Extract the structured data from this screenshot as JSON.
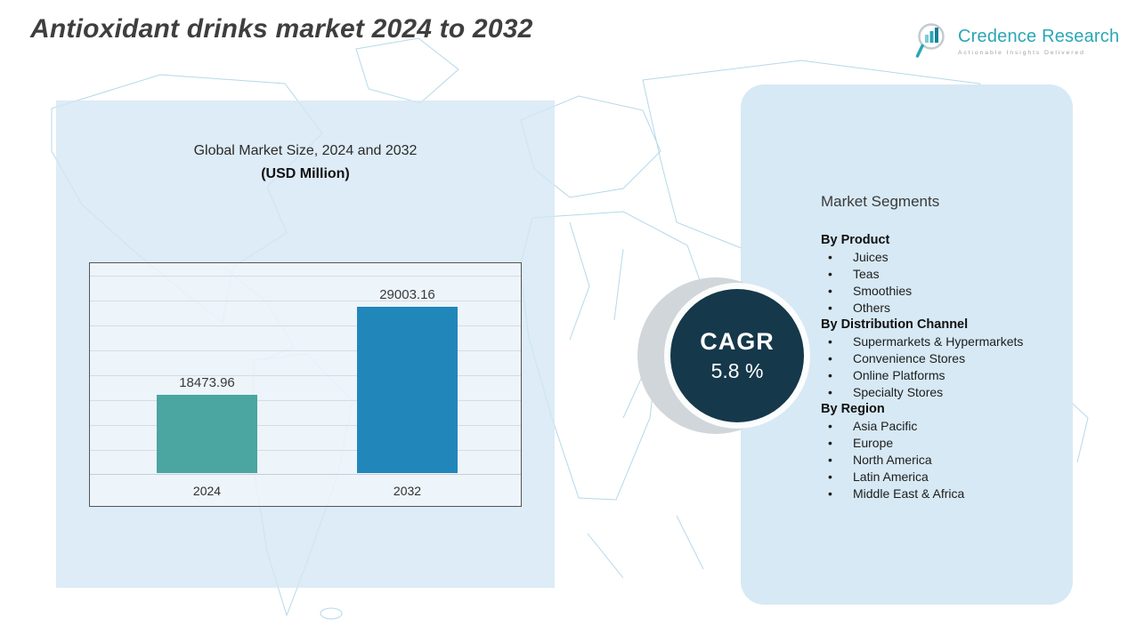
{
  "page": {
    "title": "Antioxidant drinks market 2024 to 2032"
  },
  "logo": {
    "name": "Credence Research",
    "tagline": "Actionable Insights Delivered"
  },
  "chart_panel": {
    "title_line1": "Global Market Size, 2024 and 2032",
    "title_line2": "(USD Million)"
  },
  "chart_data": {
    "type": "bar",
    "title": "Global Market Size, 2024 and 2032",
    "subtitle": "(USD Million)",
    "categories": [
      "2024",
      "2032"
    ],
    "values": [
      18473.96,
      29003.16
    ],
    "value_labels": [
      "18473.96",
      "29003.16"
    ],
    "bar_colors": [
      "#4BA5A1",
      "#2187BB"
    ],
    "xlabel": "",
    "ylabel": "",
    "grid": true,
    "legend": false
  },
  "cagr": {
    "label": "CAGR",
    "value": "5.8  %"
  },
  "segments": {
    "heading": "Market Segments",
    "groups": [
      {
        "title": "By Product",
        "items": [
          "Juices",
          "Teas",
          "Smoothies",
          "Others"
        ]
      },
      {
        "title": "By Distribution Channel",
        "items": [
          "Supermarkets & Hypermarkets",
          "Convenience Stores",
          "Online Platforms",
          "Specialty Stores"
        ]
      },
      {
        "title": "By Region",
        "items": [
          "Asia Pacific",
          "Europe",
          "North America",
          "Latin America",
          "Middle East & Africa"
        ]
      }
    ]
  },
  "colors": {
    "panel_blue": "#D7E9F4",
    "cagr_circle": "#15384A",
    "accent_teal": "#2AA7B5",
    "bar_2024": "#4BA5A1",
    "bar_2032": "#2187BB"
  }
}
